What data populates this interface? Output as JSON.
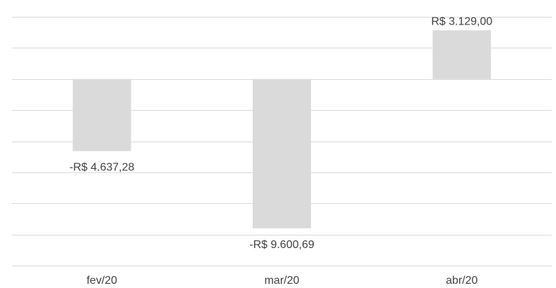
{
  "chart_data": {
    "type": "bar",
    "title": "",
    "xlabel": "",
    "ylabel": "",
    "categories": [
      "fev/20",
      "mar/20",
      "abr/20"
    ],
    "values": [
      -4637.28,
      -9600.69,
      3129.0
    ],
    "data_labels": [
      "-R$ 4.637,28",
      "-R$ 9.600,69",
      "R$ 3.129,00"
    ],
    "ylim": [
      -12000,
      4000
    ],
    "grid": true,
    "grid_step": 2000,
    "legend": "none",
    "colors": {
      "bar": "#dadada",
      "grid": "#d9d9d9",
      "text": "#404040"
    }
  }
}
